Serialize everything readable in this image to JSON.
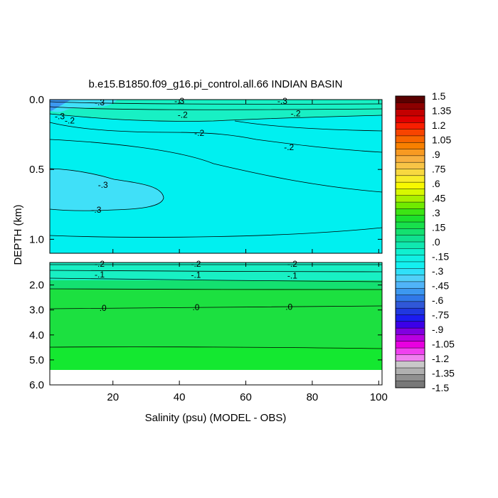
{
  "chart_data": {
    "type": "heatmap",
    "title": "b.e15.B1850.f09_g16.pi_control.all.66 INDIAN BASIN",
    "xlabel": "Salinity (psu) (MODEL - OBS)",
    "ylabel": "DEPTH (km)",
    "x_ticks": [
      20,
      40,
      60,
      80,
      100
    ],
    "upper_panel": {
      "ylim": [
        0.0,
        1.1
      ],
      "y_ticks": [
        0.0,
        0.5,
        1.0
      ],
      "y_tick_labels": [
        "0.0",
        "0.5",
        "1.0"
      ]
    },
    "lower_panel": {
      "ylim": [
        1.1,
        6.0
      ],
      "y_ticks": [
        2.0,
        3.0,
        4.0,
        5.0,
        6.0
      ],
      "y_tick_labels": [
        "2.0",
        "3.0",
        "4.0",
        "5.0",
        "6.0"
      ]
    },
    "contour_labels": [
      {
        "text": "-.3",
        "x": 4,
        "y": 0.12
      },
      {
        "text": "-.3",
        "x": 16,
        "y": 0.02
      },
      {
        "text": "-.2",
        "x": 7,
        "y": 0.15
      },
      {
        "text": "-.3",
        "x": 40,
        "y": 0.01
      },
      {
        "text": "-.2",
        "x": 41,
        "y": 0.11
      },
      {
        "text": "-.3",
        "x": 71,
        "y": 0.01
      },
      {
        "text": "-.2",
        "x": 75,
        "y": 0.1
      },
      {
        "text": "-.2",
        "x": 46,
        "y": 0.24
      },
      {
        "text": "-.2",
        "x": 73,
        "y": 0.34
      },
      {
        "text": "-.3",
        "x": 17,
        "y": 0.61
      },
      {
        "text": "-.3",
        "x": 15,
        "y": 0.79
      },
      {
        "text": "-.2",
        "x": 16,
        "y": 1.15
      },
      {
        "text": "-.2",
        "x": 45,
        "y": 1.15
      },
      {
        "text": "-.2",
        "x": 74,
        "y": 1.15
      },
      {
        "text": "-.1",
        "x": 16,
        "y": 1.58
      },
      {
        "text": "-.1",
        "x": 45,
        "y": 1.6
      },
      {
        "text": "-.1",
        "x": 74,
        "y": 1.62
      },
      {
        "text": ".0",
        "x": 17,
        "y": 2.92
      },
      {
        "text": ".0",
        "x": 45,
        "y": 2.9
      },
      {
        "text": ".0",
        "x": 73,
        "y": 2.88
      }
    ],
    "colorbar": {
      "labels": [
        "1.5",
        "1.35",
        "1.2",
        "1.05",
        ".9",
        ".75",
        ".6",
        ".45",
        ".3",
        ".15",
        ".0",
        "-.15",
        "-.3",
        "-.45",
        "-.6",
        "-.75",
        "-.9",
        "-1.05",
        "-1.2",
        "-1.35",
        "-1.5"
      ],
      "colors": [
        "#5a0000",
        "#8c0000",
        "#c40000",
        "#e00000",
        "#f81e00",
        "#f84400",
        "#f86600",
        "#f88000",
        "#f89a22",
        "#f8b040",
        "#f8c446",
        "#f8d840",
        "#f8ec2a",
        "#f8f800",
        "#d8f800",
        "#a8f000",
        "#70ea00",
        "#3ce414",
        "#1ce02c",
        "#18e04c",
        "#14e070",
        "#10e090",
        "#10e8b0",
        "#10f0d0",
        "#10f0e4",
        "#14f0f0",
        "#30e0f8",
        "#50d0f8",
        "#50b4f8",
        "#3c98f0",
        "#3078e8",
        "#3058d8",
        "#2038e0",
        "#1c1cf0",
        "#3c00e8",
        "#8000e0",
        "#b800e0",
        "#e800e0",
        "#f040f0",
        "#f080f0",
        "#c8c8c8",
        "#b0b0b0",
        "#909090",
        "#787878"
      ]
    },
    "colors": {
      "cyan_main": "#00f0f0",
      "teal_mid": "#18f0c4",
      "green_light": "#10e070",
      "green_deep": "#14e830",
      "cyan_light": "#40e0f8",
      "blue_surface": "#3c98f0"
    }
  }
}
